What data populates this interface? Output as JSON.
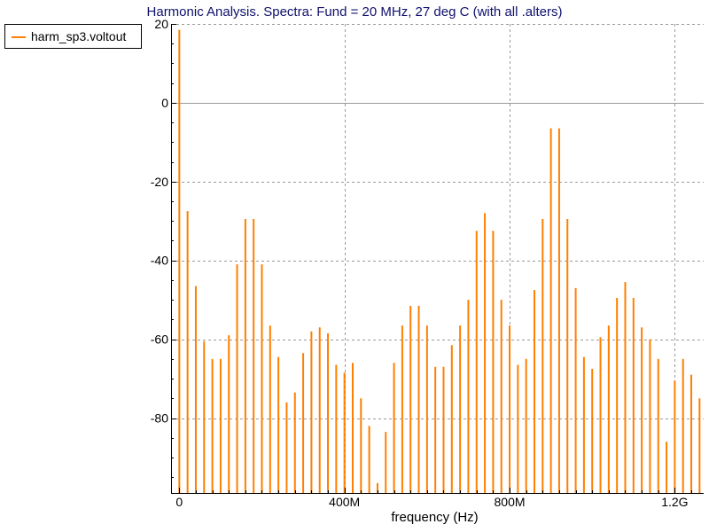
{
  "chart_data": {
    "type": "bar",
    "title": "Harmonic Analysis. Spectra: Fund = 20 MHz, 27 deg C (with all .alters)",
    "xlabel": "frequency (Hz)",
    "ylabel": "",
    "x_tick_labels": [
      "0",
      "400M",
      "800M",
      "1.2G"
    ],
    "x_tick_values": [
      0,
      400000000,
      800000000,
      1200000000
    ],
    "y_tick_labels": [
      "20",
      "0",
      "-20",
      "-40",
      "-60",
      "-80"
    ],
    "y_tick_values": [
      20,
      0,
      -20,
      -40,
      -60,
      -80
    ],
    "xlim": [
      -20000000,
      1270000000
    ],
    "ylim": [
      -99,
      20
    ],
    "grid": true,
    "legend_position": "top-left",
    "series": [
      {
        "name": "harm_sp3.voltout",
        "color": "#ff7f00",
        "x": [
          0,
          20000000,
          40000000,
          60000000,
          80000000,
          100000000,
          120000000,
          140000000,
          160000000,
          180000000,
          200000000,
          220000000,
          240000000,
          260000000,
          280000000,
          300000000,
          320000000,
          340000000,
          360000000,
          380000000,
          400000000,
          420000000,
          440000000,
          460000000,
          480000000,
          500000000,
          520000000,
          540000000,
          560000000,
          580000000,
          600000000,
          620000000,
          640000000,
          660000000,
          680000000,
          700000000,
          720000000,
          740000000,
          760000000,
          780000000,
          800000000,
          820000000,
          840000000,
          860000000,
          880000000,
          900000000,
          920000000,
          940000000,
          960000000,
          980000000,
          1000000000,
          1020000000,
          1040000000,
          1060000000,
          1080000000,
          1100000000,
          1120000000,
          1140000000,
          1160000000,
          1180000000,
          1200000000,
          1220000000,
          1240000000,
          1260000000
        ],
        "values": [
          18.5,
          -27.5,
          -46.5,
          -60.5,
          -65,
          -65,
          -59,
          -41,
          -29.5,
          -29.5,
          -41,
          -56.5,
          -64.5,
          -76,
          -73.5,
          -63.5,
          -58,
          -57,
          -58.5,
          -66.5,
          -68.5,
          -66,
          -75,
          -82,
          -96.5,
          -83.5,
          -66,
          -56.5,
          -51.5,
          -51.5,
          -56.5,
          -67,
          -67,
          -61.5,
          -56.5,
          -50,
          -32.5,
          -28,
          -32.5,
          -50,
          -56.5,
          -66.5,
          -65,
          -47.5,
          -29.5,
          -6.5,
          -6.5,
          -29.5,
          -47,
          -64.5,
          -67.5,
          -59.5,
          -56.5,
          -49.5,
          -45.5,
          -49.5,
          -57,
          -60,
          -65,
          -86,
          -70.5,
          -65,
          -69,
          -75
        ]
      }
    ]
  }
}
